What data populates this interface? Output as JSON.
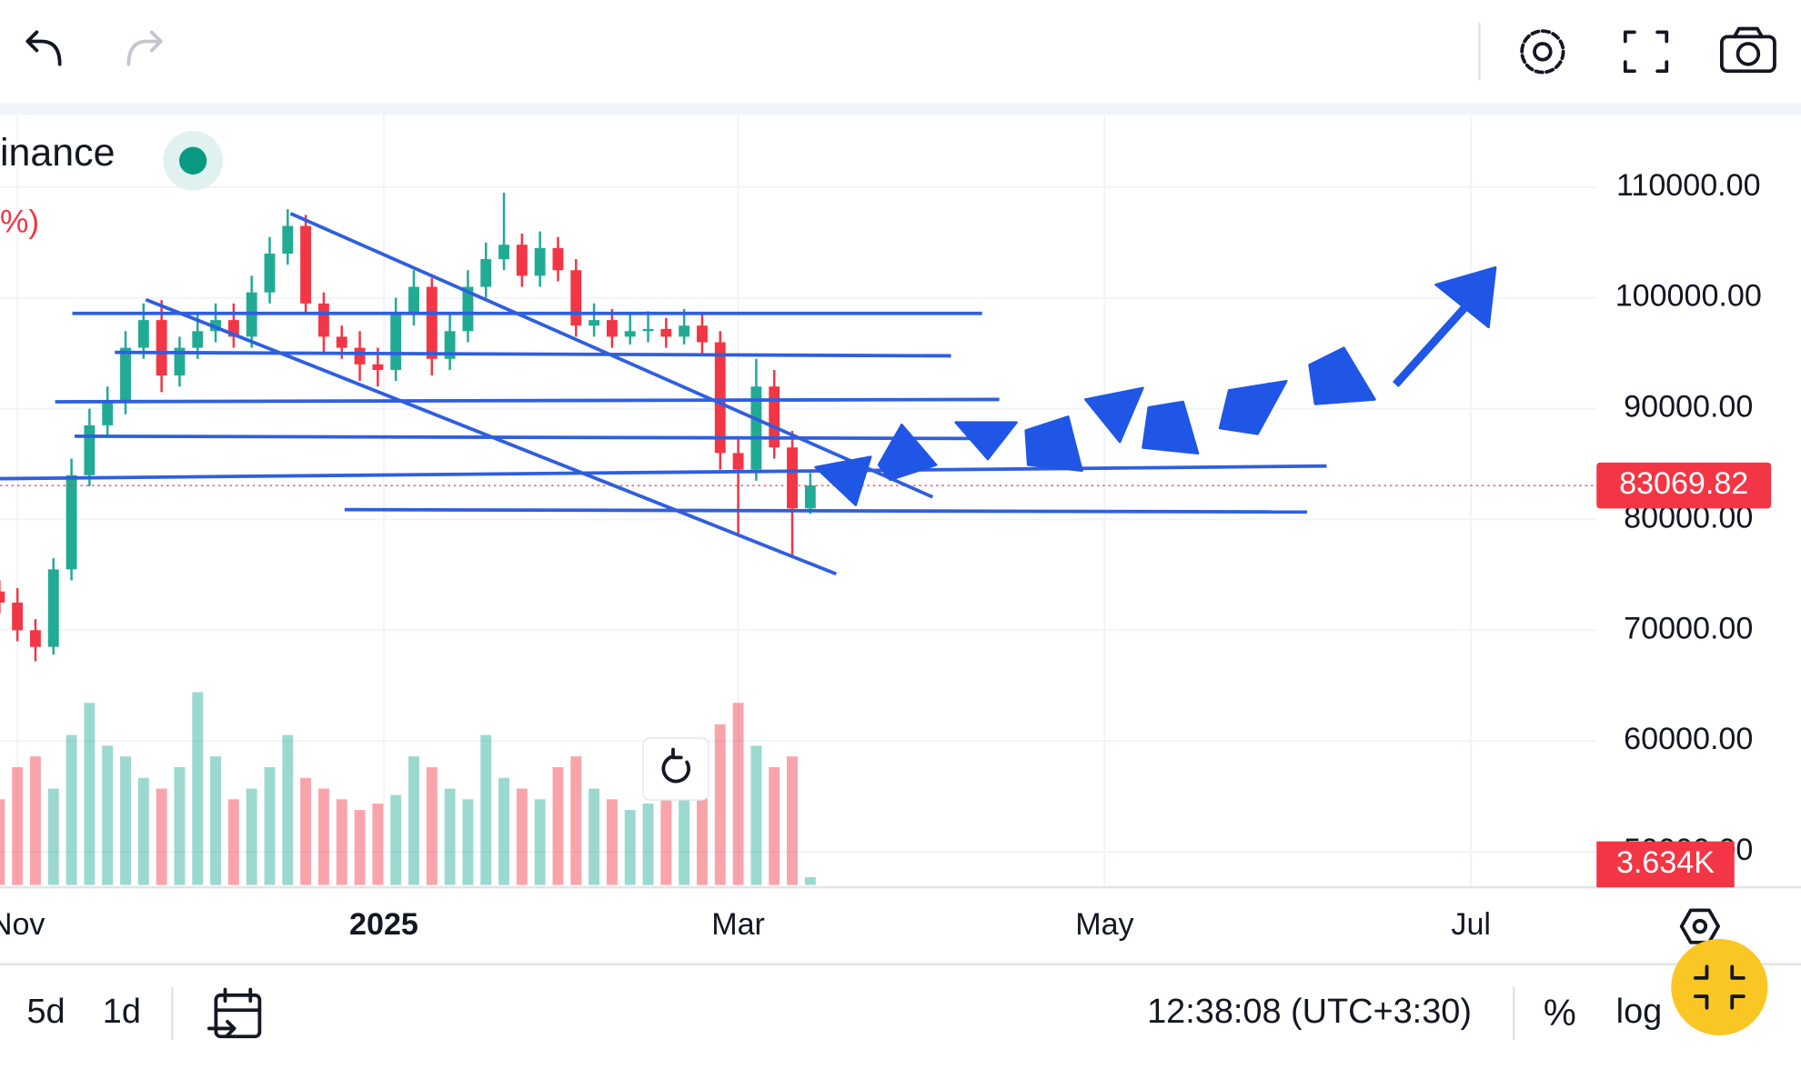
{
  "header": {
    "pair": "inance",
    "change": "%)"
  },
  "chart_data": {
    "type": "candlestick",
    "x": [
      -3,
      0,
      3,
      6,
      9,
      12,
      15,
      18,
      21,
      24,
      27,
      30,
      33,
      36,
      39,
      42,
      45,
      48,
      51,
      54,
      57,
      60,
      63,
      66,
      69,
      72,
      75,
      78,
      81,
      84,
      87,
      90,
      93,
      96,
      99,
      102,
      105,
      108,
      111,
      114,
      117,
      120,
      123,
      126,
      129,
      132
    ],
    "opens": [
      73500,
      72500,
      70000,
      68500,
      75500,
      84000,
      88500,
      90500,
      95500,
      98000,
      93000,
      95500,
      97000,
      98000,
      96500,
      100500,
      104000,
      106500,
      99500,
      96500,
      95500,
      94000,
      93500,
      98500,
      101000,
      94500,
      97000,
      101000,
      103500,
      104800,
      102000,
      104500,
      102500,
      97500,
      98000,
      96500,
      97000,
      97200,
      96500,
      97500,
      96000,
      86000,
      84500,
      92000,
      86500,
      81000
    ],
    "highs": [
      74500,
      73800,
      71000,
      76500,
      85500,
      90000,
      92000,
      97000,
      99500,
      99800,
      96500,
      98500,
      99500,
      99500,
      102000,
      105500,
      108000,
      107500,
      100500,
      97500,
      97000,
      95500,
      100000,
      102500,
      101800,
      98500,
      102500,
      105000,
      109500,
      105800,
      106000,
      105500,
      103500,
      99500,
      99000,
      98500,
      98800,
      98200,
      99000,
      98500,
      97000,
      87500,
      94500,
      93500,
      88000,
      84200
    ],
    "lows": [
      71500,
      69000,
      67200,
      67800,
      74500,
      83000,
      87500,
      89500,
      94500,
      91500,
      92000,
      94500,
      96000,
      95500,
      95500,
      99500,
      103000,
      98500,
      95000,
      94500,
      92500,
      92000,
      92500,
      97500,
      93000,
      93500,
      96000,
      100000,
      102500,
      101000,
      101000,
      101500,
      96500,
      96500,
      95500,
      95800,
      96000,
      95500,
      95800,
      95000,
      84500,
      78500,
      83500,
      85500,
      76500,
      80500
    ],
    "closes": [
      72500,
      70000,
      68500,
      75500,
      84000,
      88500,
      90500,
      95500,
      98000,
      93000,
      95500,
      97000,
      98000,
      96500,
      100500,
      104000,
      106500,
      99500,
      96500,
      95500,
      94000,
      93500,
      98500,
      101000,
      94500,
      97000,
      101000,
      103500,
      104800,
      102000,
      104500,
      102500,
      97500,
      98000,
      96500,
      97000,
      97200,
      96500,
      97500,
      96000,
      86000,
      84500,
      92000,
      86500,
      81000,
      83069.82
    ],
    "volumes": [
      40,
      55,
      60,
      45,
      70,
      85,
      65,
      60,
      50,
      45,
      55,
      90,
      60,
      40,
      45,
      55,
      70,
      50,
      45,
      40,
      35,
      38,
      42,
      60,
      55,
      45,
      40,
      70,
      50,
      45,
      40,
      55,
      60,
      45,
      40,
      35,
      38,
      42,
      40,
      45,
      75,
      85,
      65,
      55,
      60,
      3.634
    ],
    "last_volume_label": "3.634K",
    "up_color": "#22ab94",
    "down_color": "#f23645",
    "xlim": [
      -2.9,
      262.9
    ],
    "xticks": [
      {
        "value": 0,
        "label": "Nov"
      },
      {
        "value": 61,
        "label": "2025"
      },
      {
        "value": 120,
        "label": "Mar"
      },
      {
        "value": 181,
        "label": "May"
      },
      {
        "value": 242,
        "label": "Jul"
      }
    ],
    "ylim": [
      46800,
      116530
    ],
    "yticks": [
      {
        "value": 50000,
        "label": "50000.00"
      },
      {
        "value": 60000,
        "label": "60000.00"
      },
      {
        "value": 70000,
        "label": "70000.00"
      },
      {
        "value": 80000,
        "label": "80000.00"
      },
      {
        "value": 90000,
        "label": "90000.00"
      },
      {
        "value": 100000,
        "label": "100000.00"
      },
      {
        "value": 110000,
        "label": "110000.00"
      }
    ],
    "grid": true
  },
  "footer": {
    "intervals": [
      "5d",
      "1d"
    ],
    "clock": "12:38:08 (UTC+3:30)",
    "percent": "%",
    "log": "log"
  }
}
